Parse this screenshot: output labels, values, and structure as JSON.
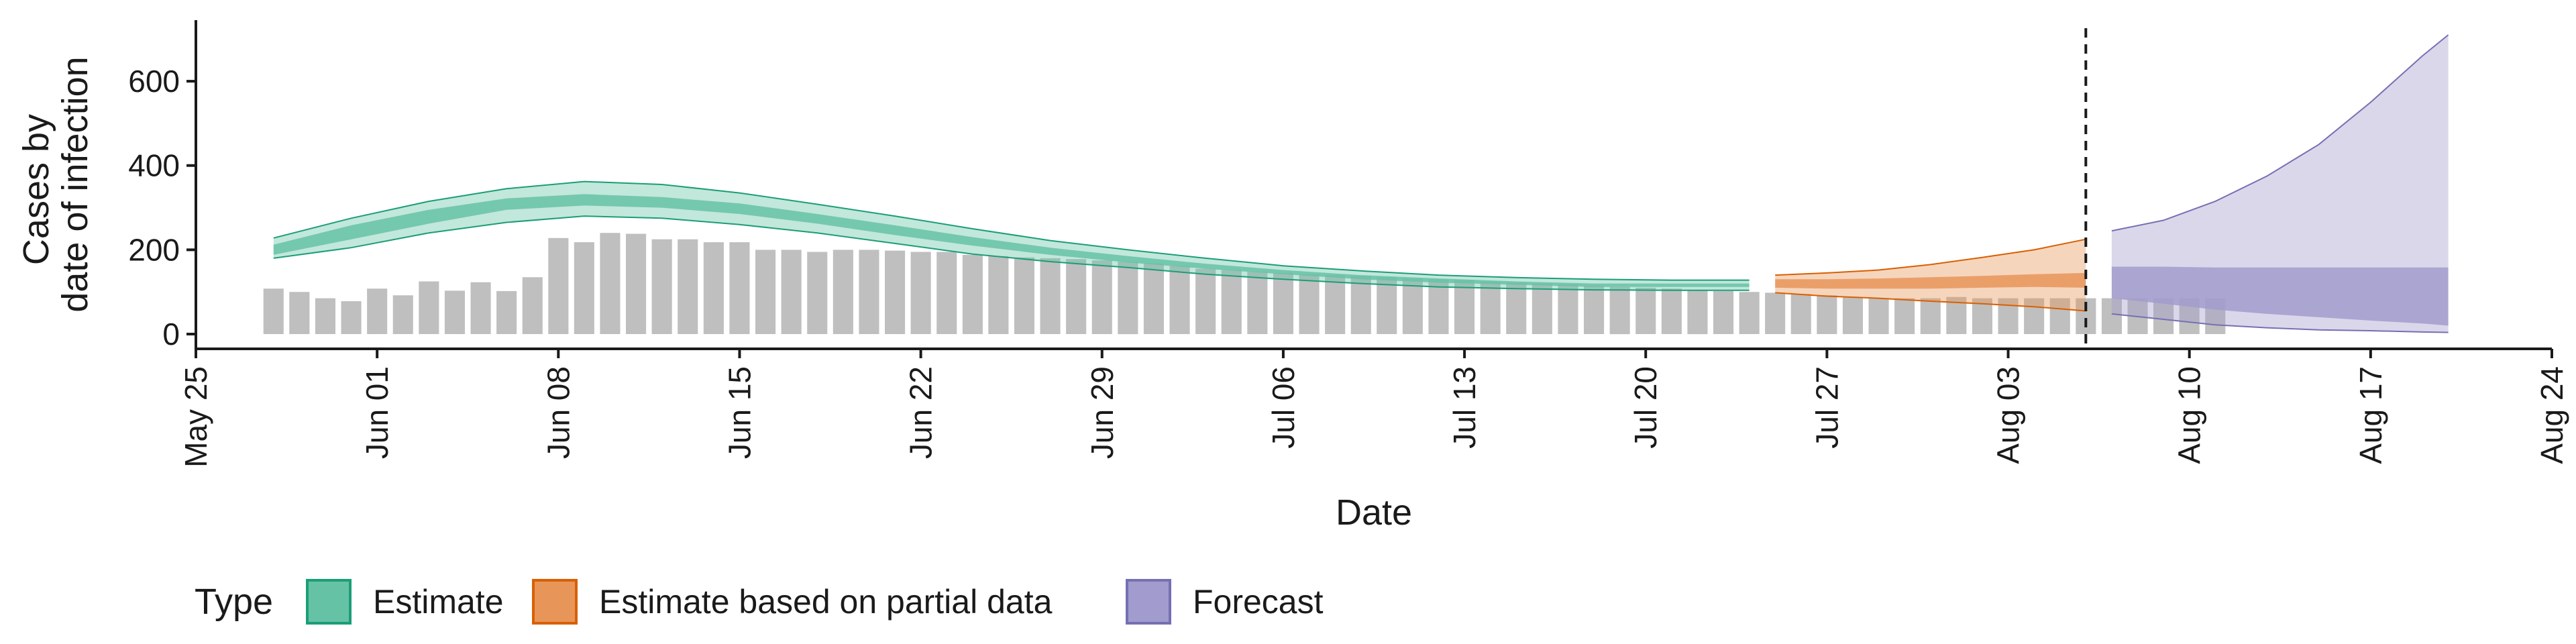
{
  "chart_data": {
    "type": "area",
    "xlabel": "Date",
    "ylabel_lines": [
      "Cases by",
      "date of infection"
    ],
    "x_domain": [
      "2020-05-25",
      "2020-08-24"
    ],
    "x_ticks": [
      "May 25",
      "Jun 01",
      "Jun 08",
      "Jun 15",
      "Jun 22",
      "Jun 29",
      "Jul 06",
      "Jul 13",
      "Jul 20",
      "Jul 27",
      "Aug 03",
      "Aug 10",
      "Aug 17",
      "Aug 24"
    ],
    "x_tick_dates": [
      "2020-05-25",
      "2020-06-01",
      "2020-06-08",
      "2020-06-15",
      "2020-06-22",
      "2020-06-29",
      "2020-07-06",
      "2020-07-13",
      "2020-07-20",
      "2020-07-27",
      "2020-08-03",
      "2020-08-10",
      "2020-08-17",
      "2020-08-24"
    ],
    "y_ticks": [
      0,
      200,
      400,
      600
    ],
    "ylim": [
      -35,
      745
    ],
    "grid": false,
    "vline_date": "2020-08-06",
    "legend": {
      "title": "Type",
      "position": "bottom",
      "items": [
        {
          "label": "Estimate",
          "fill": "#66c2a5",
          "stroke": "#1b9e77"
        },
        {
          "label": "Estimate based on partial data",
          "fill": "#e8955a",
          "stroke": "#d95f02"
        },
        {
          "label": "Forecast",
          "fill": "#a29cce",
          "stroke": "#7570b3"
        }
      ]
    },
    "bars": {
      "color": "#bfbfbf",
      "start_date": "2020-05-28",
      "values": [
        108,
        100,
        85,
        78,
        108,
        92,
        125,
        103,
        123,
        102,
        135,
        228,
        218,
        240,
        238,
        225,
        225,
        218,
        218,
        200,
        200,
        195,
        200,
        200,
        198,
        195,
        195,
        188,
        185,
        182,
        180,
        178,
        175,
        172,
        168,
        162,
        155,
        152,
        148,
        145,
        142,
        140,
        138,
        135,
        132,
        130,
        128,
        125,
        122,
        120,
        118,
        115,
        112,
        110,
        108,
        105,
        102,
        100,
        98,
        95,
        92,
        88,
        85,
        85,
        85,
        88,
        85,
        85,
        85,
        85,
        85,
        85,
        85,
        85,
        85,
        85
      ]
    },
    "series": [
      {
        "name": "Estimate",
        "dates": [
          "2020-05-28",
          "2020-05-31",
          "2020-06-03",
          "2020-06-06",
          "2020-06-09",
          "2020-06-12",
          "2020-06-15",
          "2020-06-18",
          "2020-06-21",
          "2020-06-24",
          "2020-06-27",
          "2020-06-30",
          "2020-07-03",
          "2020-07-06",
          "2020-07-09",
          "2020-07-12",
          "2020-07-15",
          "2020-07-18",
          "2020-07-21",
          "2020-07-24"
        ],
        "lower90": [
          180,
          205,
          240,
          265,
          280,
          275,
          260,
          240,
          215,
          190,
          172,
          158,
          142,
          130,
          120,
          112,
          108,
          105,
          104,
          104
        ],
        "lower50": [
          188,
          225,
          262,
          295,
          305,
          300,
          285,
          262,
          235,
          210,
          188,
          170,
          155,
          142,
          130,
          122,
          117,
          112,
          112,
          112
        ],
        "upper50": [
          212,
          258,
          295,
          322,
          332,
          325,
          310,
          285,
          258,
          230,
          205,
          185,
          167,
          152,
          140,
          132,
          125,
          120,
          120,
          120
        ],
        "upper90": [
          228,
          275,
          315,
          345,
          362,
          355,
          335,
          308,
          280,
          250,
          222,
          200,
          180,
          162,
          150,
          140,
          134,
          130,
          128,
          128
        ]
      },
      {
        "name": "Estimate based on partial data",
        "dates": [
          "2020-07-25",
          "2020-07-27",
          "2020-07-29",
          "2020-07-31",
          "2020-08-02",
          "2020-08-04",
          "2020-08-06"
        ],
        "lower90": [
          98,
          90,
          85,
          78,
          72,
          65,
          55
        ],
        "lower50": [
          110,
          108,
          108,
          108,
          110,
          112,
          110
        ],
        "upper50": [
          130,
          130,
          132,
          135,
          138,
          142,
          145
        ],
        "upper90": [
          140,
          145,
          152,
          165,
          182,
          200,
          225
        ]
      },
      {
        "name": "Forecast",
        "dates": [
          "2020-08-07",
          "2020-08-09",
          "2020-08-11",
          "2020-08-13",
          "2020-08-15",
          "2020-08-17",
          "2020-08-19",
          "2020-08-20"
        ],
        "lower90": [
          48,
          35,
          22,
          15,
          10,
          8,
          5,
          4
        ],
        "lower50": [
          85,
          72,
          58,
          48,
          40,
          32,
          25,
          20
        ],
        "upper50": [
          160,
          160,
          158,
          158,
          158,
          158,
          158,
          158
        ],
        "upper90": [
          245,
          270,
          315,
          375,
          450,
          550,
          660,
          710
        ]
      }
    ]
  }
}
